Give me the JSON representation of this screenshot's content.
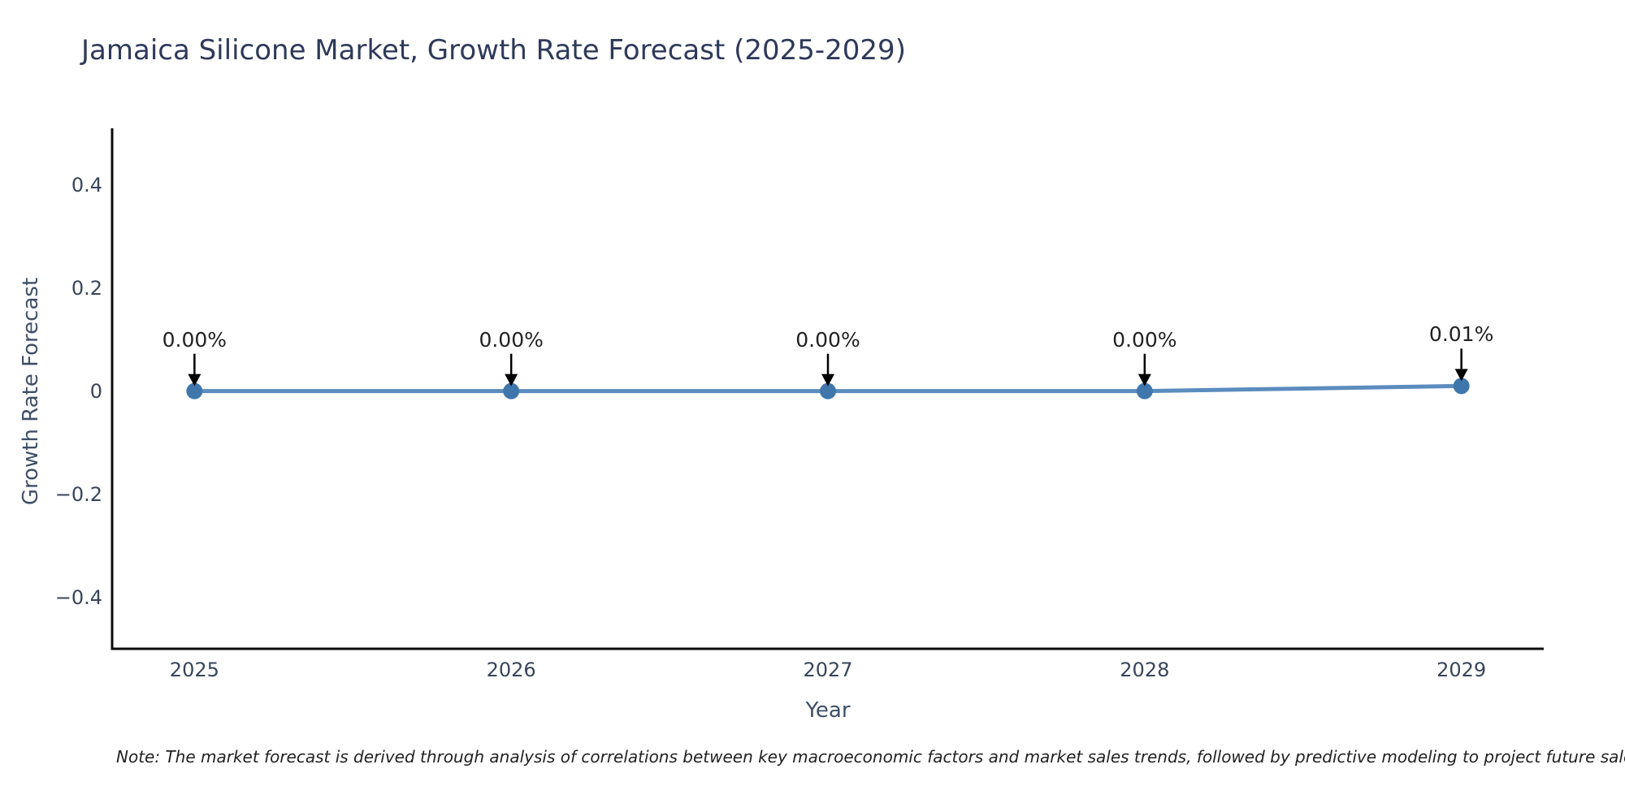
{
  "title": "Jamaica Silicone Market, Growth Rate Forecast (2025-2029)",
  "note": "Note: The market forecast is derived through analysis of correlations between key macroeconomic factors and market sales trends, followed by predictive modeling to project future sales.",
  "chart_data": {
    "type": "line",
    "title": "Jamaica Silicone Market, Growth Rate Forecast (2025-2029)",
    "x": [
      2025,
      2026,
      2027,
      2028,
      2029
    ],
    "values": [
      0.0,
      0.0,
      0.0,
      0.0,
      0.01
    ],
    "point_labels": [
      "0.00%",
      "0.00%",
      "0.00%",
      "0.00%",
      "0.01%"
    ],
    "xtick_labels": [
      "2025",
      "2026",
      "2027",
      "2028",
      "2029"
    ],
    "yticks": [
      0.4,
      0.2,
      0,
      -0.2,
      -0.4
    ],
    "ytick_labels": [
      "0.4",
      "0.2",
      "0",
      "−0.2",
      "−0.4"
    ],
    "xlabel": "Year",
    "ylabel": "Growth Rate Forecast",
    "xlim": [
      2024.74,
      2029.26
    ],
    "ylim": [
      -0.5,
      0.51
    ],
    "grid": false,
    "legend": "none",
    "line_color": "#5b8cbe",
    "marker_color": "#3f77ad",
    "arrow_color": "#000000",
    "spine_color": "#0c0c0c"
  },
  "colors": {
    "background": "#ffffff",
    "title_text": "#2e3a59",
    "axis_title_text": "#3e5067",
    "tick_text": "#39455a",
    "data_label_text": "#222222"
  }
}
